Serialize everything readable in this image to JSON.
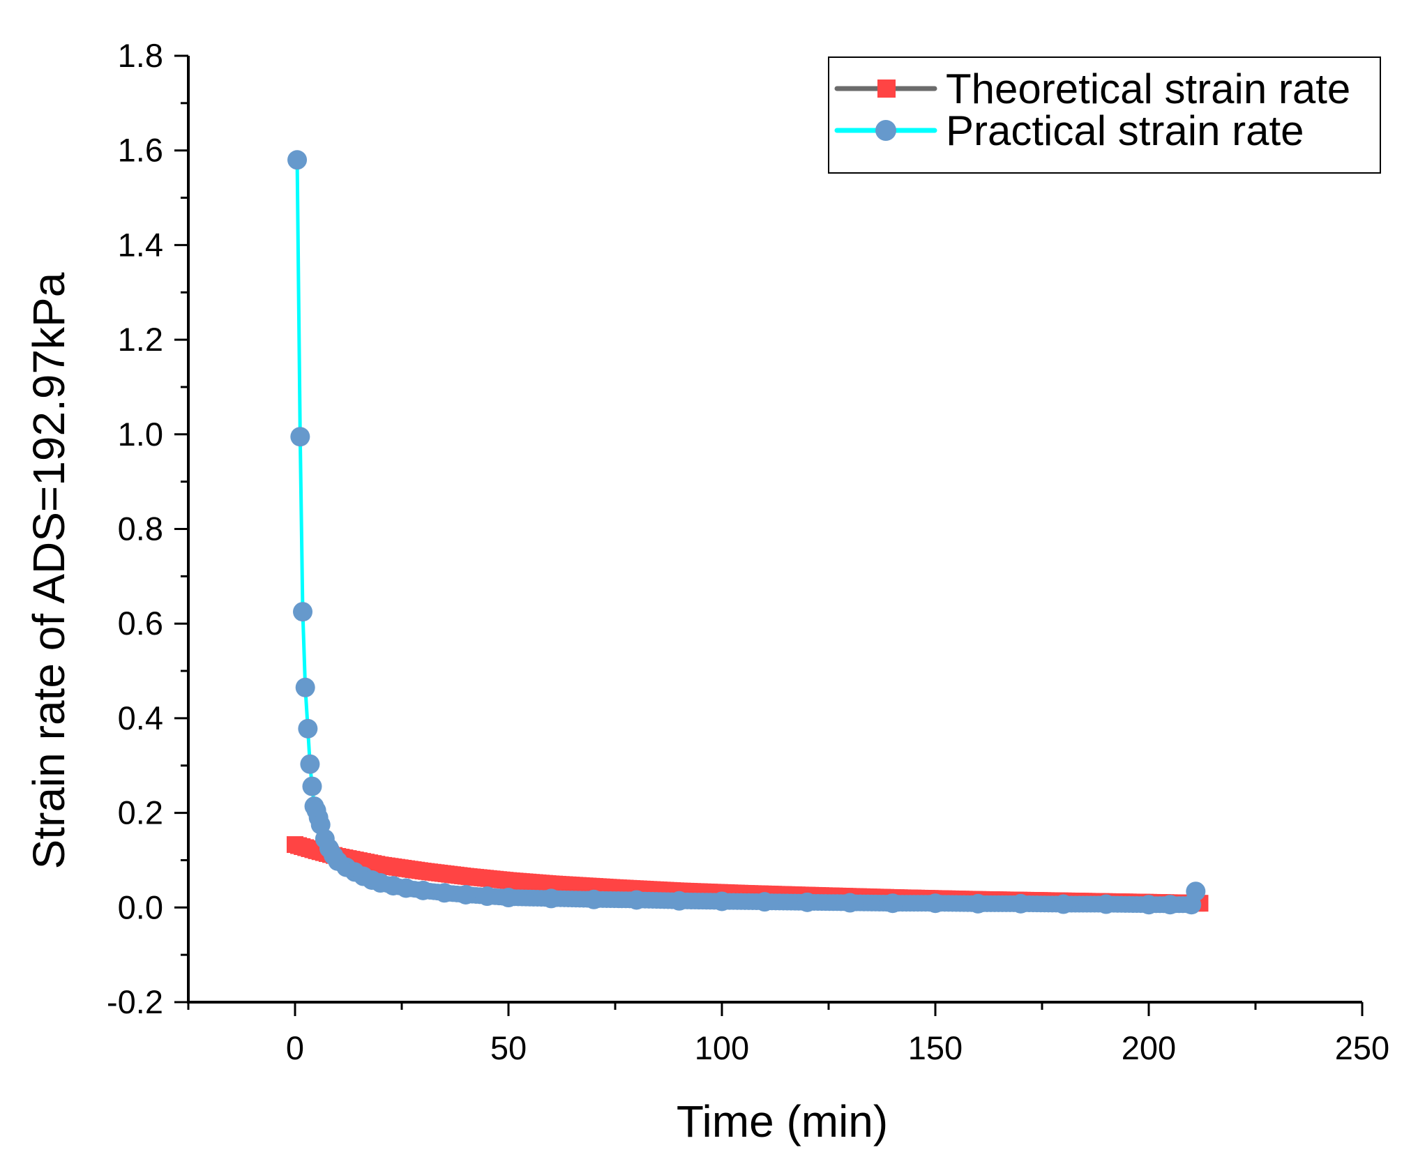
{
  "chart_data": {
    "type": "scatter",
    "title": "",
    "xlabel": "Time (min)",
    "ylabel": "Strain rate of ADS=192.97kPa",
    "xlim": [
      -25,
      250
    ],
    "ylim": [
      -0.2,
      1.8
    ],
    "x_ticks": [
      0,
      50,
      100,
      150,
      200,
      250
    ],
    "x_tick_labels": [
      "0",
      "50",
      "100",
      "150",
      "200",
      "250"
    ],
    "y_ticks": [
      -0.2,
      0.0,
      0.2,
      0.4,
      0.6,
      0.8,
      1.0,
      1.2,
      1.4,
      1.6,
      1.8
    ],
    "y_tick_labels": [
      "-0.2",
      "0.0",
      "0.2",
      "0.4",
      "0.6",
      "0.8",
      "1.0",
      "1.2",
      "1.4",
      "1.6",
      "1.8"
    ],
    "grid": false,
    "legend_position": "top-right",
    "series": [
      {
        "name": "Theoretical strain rate",
        "marker": "square",
        "line_color": "#6b6b6b",
        "marker_color": "#ff4444",
        "x": [
          0,
          5,
          10,
          15,
          20,
          30,
          40,
          50,
          60,
          75,
          90,
          105,
          120,
          140,
          160,
          180,
          200,
          212
        ],
        "y": [
          0.133,
          0.12,
          0.108,
          0.099,
          0.09,
          0.077,
          0.066,
          0.057,
          0.05,
          0.042,
          0.035,
          0.03,
          0.026,
          0.021,
          0.017,
          0.014,
          0.011,
          0.009
        ]
      },
      {
        "name": "Practical strain rate",
        "marker": "circle",
        "line_color": "#00ffff",
        "marker_color": "#6699cc",
        "x": [
          0.5,
          1.2,
          1.8,
          2.4,
          3.0,
          3.5,
          4.0,
          4.5,
          5.0,
          5.5,
          6.0,
          7.0,
          8.0,
          9.0,
          10,
          12,
          14,
          16,
          18,
          20,
          23,
          26,
          30,
          35,
          40,
          45,
          50,
          60,
          70,
          80,
          90,
          100,
          110,
          120,
          130,
          140,
          150,
          160,
          170,
          180,
          190,
          200,
          205,
          210,
          211
        ],
        "y": [
          1.58,
          0.995,
          0.625,
          0.465,
          0.378,
          0.303,
          0.256,
          0.214,
          0.205,
          0.19,
          0.175,
          0.145,
          0.125,
          0.11,
          0.098,
          0.085,
          0.075,
          0.066,
          0.058,
          0.052,
          0.046,
          0.041,
          0.036,
          0.031,
          0.027,
          0.024,
          0.021,
          0.019,
          0.017,
          0.016,
          0.014,
          0.013,
          0.012,
          0.011,
          0.01,
          0.009,
          0.009,
          0.008,
          0.008,
          0.007,
          0.007,
          0.006,
          0.006,
          0.006,
          0.034
        ]
      }
    ]
  }
}
